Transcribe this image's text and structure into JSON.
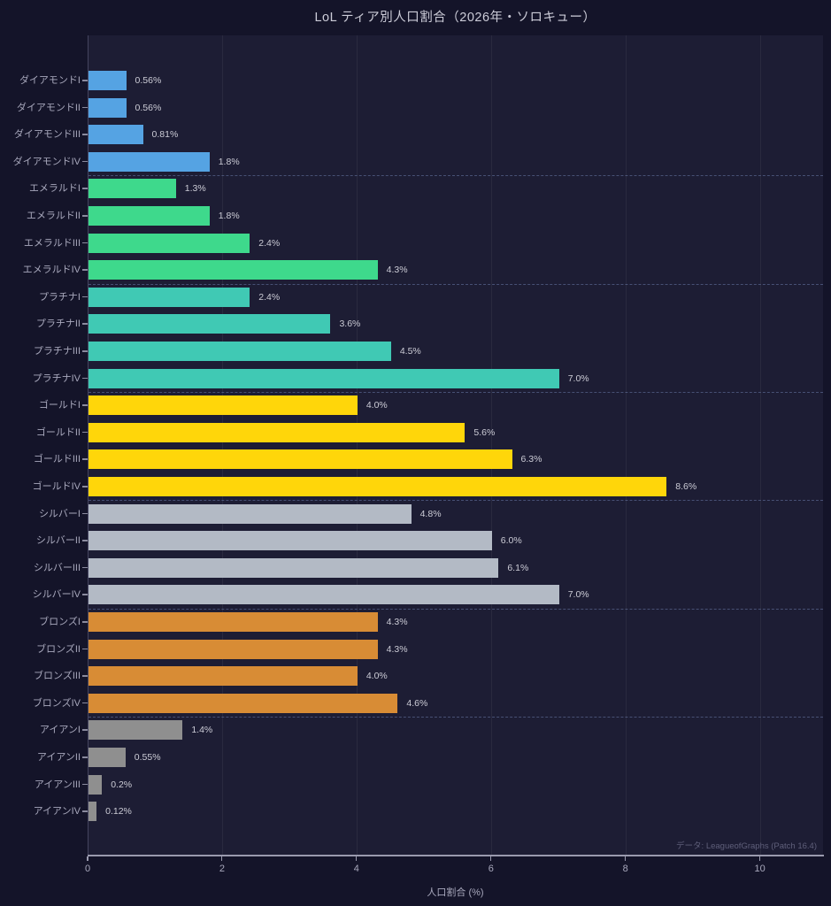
{
  "title": "LoL ティア別人口割合（2026年・ソロキュー）",
  "source_note": "データ: LeagueofGraphs (Patch 16.4)",
  "chart_data": {
    "type": "bar",
    "orientation": "horizontal",
    "title": "LoL ティア別人口割合（2026年・ソロキュー）",
    "xlabel": "人口割合 (%)",
    "ylabel": "",
    "xlim": [
      0,
      10.94
    ],
    "xticks": [
      0,
      2,
      4,
      6,
      8,
      10
    ],
    "grid": "faint vertical gridlines at each x tick; dashed horizontal separators between tier groups",
    "legend": "none",
    "source_note": "データ: LeagueofGraphs (Patch 16.4)",
    "groups": [
      {
        "tier": "ダイアモンド",
        "color": "#55a3e3",
        "items": [
          {
            "label": "ダイアモンドI",
            "value": 0.56,
            "value_label": "0.56%"
          },
          {
            "label": "ダイアモンドII",
            "value": 0.56,
            "value_label": "0.56%"
          },
          {
            "label": "ダイアモンドIII",
            "value": 0.81,
            "value_label": "0.81%"
          },
          {
            "label": "ダイアモンドIV",
            "value": 1.8,
            "value_label": "1.8%"
          }
        ]
      },
      {
        "tier": "エメラルド",
        "color": "#3ed98c",
        "items": [
          {
            "label": "エメラルドI",
            "value": 1.3,
            "value_label": "1.3%"
          },
          {
            "label": "エメラルドII",
            "value": 1.8,
            "value_label": "1.8%"
          },
          {
            "label": "エメラルドIII",
            "value": 2.4,
            "value_label": "2.4%"
          },
          {
            "label": "エメラルドIV",
            "value": 4.3,
            "value_label": "4.3%"
          }
        ]
      },
      {
        "tier": "プラチナ",
        "color": "#40c9b4",
        "items": [
          {
            "label": "プラチナI",
            "value": 2.4,
            "value_label": "2.4%"
          },
          {
            "label": "プラチナII",
            "value": 3.6,
            "value_label": "3.6%"
          },
          {
            "label": "プラチナIII",
            "value": 4.5,
            "value_label": "4.5%"
          },
          {
            "label": "プラチナIV",
            "value": 7.0,
            "value_label": "7.0%"
          }
        ]
      },
      {
        "tier": "ゴールド",
        "color": "#ffd60a",
        "items": [
          {
            "label": "ゴールドI",
            "value": 4.0,
            "value_label": "4.0%"
          },
          {
            "label": "ゴールドII",
            "value": 5.6,
            "value_label": "5.6%"
          },
          {
            "label": "ゴールドIII",
            "value": 6.3,
            "value_label": "6.3%"
          },
          {
            "label": "ゴールドIV",
            "value": 8.6,
            "value_label": "8.6%"
          }
        ]
      },
      {
        "tier": "シルバー",
        "color": "#b3bac5",
        "items": [
          {
            "label": "シルバーI",
            "value": 4.8,
            "value_label": "4.8%"
          },
          {
            "label": "シルバーII",
            "value": 6.0,
            "value_label": "6.0%"
          },
          {
            "label": "シルバーIII",
            "value": 6.1,
            "value_label": "6.1%"
          },
          {
            "label": "シルバーIV",
            "value": 7.0,
            "value_label": "7.0%"
          }
        ]
      },
      {
        "tier": "ブロンズ",
        "color": "#d88c35",
        "items": [
          {
            "label": "ブロンズI",
            "value": 4.3,
            "value_label": "4.3%"
          },
          {
            "label": "ブロンズII",
            "value": 4.3,
            "value_label": "4.3%"
          },
          {
            "label": "ブロンズIII",
            "value": 4.0,
            "value_label": "4.0%"
          },
          {
            "label": "ブロンズIV",
            "value": 4.6,
            "value_label": "4.6%"
          }
        ]
      },
      {
        "tier": "アイアン",
        "color": "#8f8f8f",
        "items": [
          {
            "label": "アイアンI",
            "value": 1.4,
            "value_label": "1.4%"
          },
          {
            "label": "アイアンII",
            "value": 0.55,
            "value_label": "0.55%"
          },
          {
            "label": "アイアンIII",
            "value": 0.2,
            "value_label": "0.2%"
          },
          {
            "label": "アイアンIV",
            "value": 0.12,
            "value_label": "0.12%"
          }
        ]
      }
    ]
  }
}
